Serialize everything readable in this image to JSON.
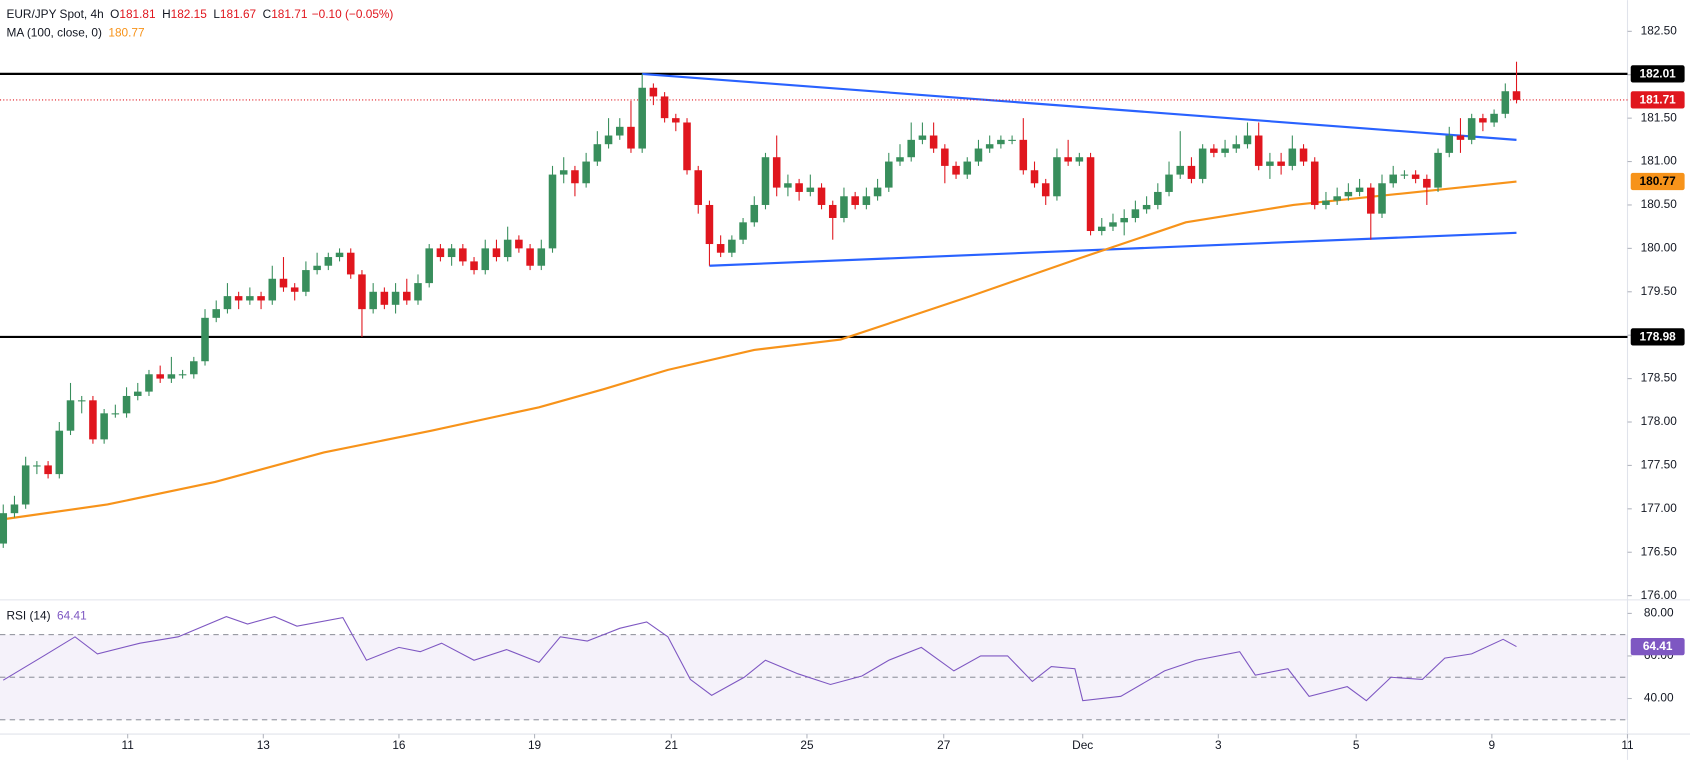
{
  "chart_data": {
    "type": "candlestick",
    "title": "EUR/JPY Spot, 4h",
    "ohlc_labels": [
      "O",
      "H",
      "L",
      "C"
    ],
    "change": "−0.10 (−0.05%)",
    "up_color": "#388e5c",
    "down_color": "#e0161e",
    "candles": [
      [
        176.6,
        177.05,
        176.55,
        176.95
      ],
      [
        176.95,
        177.15,
        176.9,
        177.05
      ],
      [
        177.05,
        177.6,
        177.0,
        177.5
      ],
      [
        177.5,
        177.55,
        177.4,
        177.5
      ],
      [
        177.5,
        177.55,
        177.35,
        177.4
      ],
      [
        177.4,
        178.0,
        177.35,
        177.9
      ],
      [
        177.9,
        178.45,
        177.85,
        178.25
      ],
      [
        178.25,
        178.3,
        178.1,
        178.25
      ],
      [
        178.25,
        178.3,
        177.75,
        177.8
      ],
      [
        177.8,
        178.15,
        177.75,
        178.1
      ],
      [
        178.1,
        178.2,
        178.05,
        178.1
      ],
      [
        178.1,
        178.4,
        178.05,
        178.3
      ],
      [
        178.3,
        178.45,
        178.25,
        178.35
      ],
      [
        178.35,
        178.6,
        178.3,
        178.55
      ],
      [
        178.55,
        178.65,
        178.45,
        178.5
      ],
      [
        178.5,
        178.75,
        178.45,
        178.55
      ],
      [
        178.55,
        178.6,
        178.5,
        178.55
      ],
      [
        178.55,
        178.75,
        178.5,
        178.7
      ],
      [
        178.7,
        179.3,
        178.65,
        179.2
      ],
      [
        179.2,
        179.4,
        179.15,
        179.3
      ],
      [
        179.3,
        179.6,
        179.25,
        179.45
      ],
      [
        179.45,
        179.5,
        179.3,
        179.4
      ],
      [
        179.4,
        179.55,
        179.35,
        179.45
      ],
      [
        179.45,
        179.5,
        179.3,
        179.4
      ],
      [
        179.4,
        179.8,
        179.35,
        179.65
      ],
      [
        179.65,
        179.9,
        179.5,
        179.55
      ],
      [
        179.55,
        179.6,
        179.4,
        179.5
      ],
      [
        179.5,
        179.85,
        179.45,
        179.75
      ],
      [
        179.75,
        179.95,
        179.7,
        179.8
      ],
      [
        179.8,
        179.95,
        179.75,
        179.9
      ],
      [
        179.9,
        180.0,
        179.85,
        179.95
      ],
      [
        179.95,
        180.0,
        179.65,
        179.7
      ],
      [
        179.7,
        179.75,
        178.98,
        179.3
      ],
      [
        179.3,
        179.6,
        179.25,
        179.5
      ],
      [
        179.5,
        179.55,
        179.3,
        179.35
      ],
      [
        179.35,
        179.6,
        179.25,
        179.5
      ],
      [
        179.5,
        179.65,
        179.35,
        179.4
      ],
      [
        179.4,
        179.7,
        179.35,
        179.6
      ],
      [
        179.6,
        180.05,
        179.55,
        180.0
      ],
      [
        180.0,
        180.05,
        179.85,
        179.9
      ],
      [
        179.9,
        180.05,
        179.8,
        180.0
      ],
      [
        180.0,
        180.05,
        179.8,
        179.85
      ],
      [
        179.85,
        179.9,
        179.7,
        179.75
      ],
      [
        179.75,
        180.1,
        179.7,
        180.0
      ],
      [
        180.0,
        180.1,
        179.85,
        179.9
      ],
      [
        179.9,
        180.25,
        179.85,
        180.1
      ],
      [
        180.1,
        180.15,
        179.95,
        180.0
      ],
      [
        180.0,
        180.05,
        179.75,
        179.8
      ],
      [
        179.8,
        180.1,
        179.75,
        180.0
      ],
      [
        180.0,
        180.95,
        179.95,
        180.85
      ],
      [
        180.85,
        181.05,
        180.75,
        180.9
      ],
      [
        180.9,
        180.95,
        180.6,
        180.75
      ],
      [
        180.75,
        181.1,
        180.7,
        181.0
      ],
      [
        181.0,
        181.35,
        180.95,
        181.2
      ],
      [
        181.2,
        181.5,
        181.15,
        181.3
      ],
      [
        181.3,
        181.5,
        181.25,
        181.4
      ],
      [
        181.4,
        181.7,
        181.1,
        181.15
      ],
      [
        181.15,
        182.01,
        181.1,
        181.85
      ],
      [
        181.85,
        181.9,
        181.65,
        181.75
      ],
      [
        181.75,
        181.8,
        181.45,
        181.5
      ],
      [
        181.5,
        181.55,
        181.35,
        181.45
      ],
      [
        181.45,
        181.5,
        180.85,
        180.9
      ],
      [
        180.9,
        180.95,
        180.4,
        180.5
      ],
      [
        180.5,
        180.55,
        179.8,
        180.05
      ],
      [
        180.05,
        180.15,
        179.9,
        179.95
      ],
      [
        179.95,
        180.15,
        179.9,
        180.1
      ],
      [
        180.1,
        180.35,
        180.05,
        180.3
      ],
      [
        180.3,
        180.6,
        180.25,
        180.5
      ],
      [
        180.5,
        181.1,
        180.45,
        181.05
      ],
      [
        181.05,
        181.3,
        180.6,
        180.7
      ],
      [
        180.7,
        180.85,
        180.6,
        180.75
      ],
      [
        180.75,
        180.8,
        180.55,
        180.65
      ],
      [
        180.65,
        180.85,
        180.6,
        180.7
      ],
      [
        180.7,
        180.75,
        180.45,
        180.5
      ],
      [
        180.5,
        180.55,
        180.1,
        180.35
      ],
      [
        180.35,
        180.7,
        180.3,
        180.6
      ],
      [
        180.6,
        180.65,
        180.45,
        180.5
      ],
      [
        180.5,
        180.7,
        180.45,
        180.6
      ],
      [
        180.6,
        180.8,
        180.55,
        180.7
      ],
      [
        180.7,
        181.1,
        180.65,
        181.0
      ],
      [
        181.0,
        181.2,
        180.95,
        181.05
      ],
      [
        181.05,
        181.45,
        181.0,
        181.25
      ],
      [
        181.25,
        181.45,
        181.2,
        181.3
      ],
      [
        181.3,
        181.45,
        181.1,
        181.15
      ],
      [
        181.15,
        181.2,
        180.75,
        180.95
      ],
      [
        180.95,
        181.0,
        180.8,
        180.85
      ],
      [
        180.85,
        181.05,
        180.8,
        181.0
      ],
      [
        181.0,
        181.25,
        180.95,
        181.15
      ],
      [
        181.15,
        181.3,
        181.1,
        181.2
      ],
      [
        181.2,
        181.3,
        181.15,
        181.25
      ],
      [
        181.25,
        181.3,
        181.2,
        181.25
      ],
      [
        181.25,
        181.5,
        180.85,
        180.9
      ],
      [
        180.9,
        181.0,
        180.7,
        180.75
      ],
      [
        180.75,
        180.8,
        180.5,
        180.6
      ],
      [
        180.6,
        181.15,
        180.55,
        181.05
      ],
      [
        181.05,
        181.25,
        180.95,
        181.0
      ],
      [
        181.0,
        181.1,
        180.95,
        181.05
      ],
      [
        181.05,
        181.1,
        180.15,
        180.2
      ],
      [
        180.2,
        180.35,
        180.15,
        180.25
      ],
      [
        180.25,
        180.4,
        180.2,
        180.3
      ],
      [
        180.3,
        180.45,
        180.15,
        180.35
      ],
      [
        180.35,
        180.55,
        180.3,
        180.45
      ],
      [
        180.45,
        180.6,
        180.4,
        180.5
      ],
      [
        180.5,
        180.75,
        180.45,
        180.65
      ],
      [
        180.65,
        181.0,
        180.6,
        180.85
      ],
      [
        180.85,
        181.35,
        180.8,
        180.95
      ],
      [
        180.95,
        181.05,
        180.75,
        180.8
      ],
      [
        180.8,
        181.2,
        180.75,
        181.15
      ],
      [
        181.15,
        181.2,
        181.05,
        181.1
      ],
      [
        181.1,
        181.25,
        181.05,
        181.15
      ],
      [
        181.15,
        181.3,
        181.1,
        181.2
      ],
      [
        181.2,
        181.45,
        181.15,
        181.3
      ],
      [
        181.3,
        181.45,
        180.9,
        180.95
      ],
      [
        180.95,
        181.1,
        180.8,
        181.0
      ],
      [
        181.0,
        181.1,
        180.85,
        180.95
      ],
      [
        180.95,
        181.3,
        180.9,
        181.15
      ],
      [
        181.15,
        181.2,
        180.95,
        181.0
      ],
      [
        181.0,
        181.05,
        180.45,
        180.5
      ],
      [
        180.5,
        180.65,
        180.45,
        180.55
      ],
      [
        180.55,
        180.7,
        180.5,
        180.6
      ],
      [
        180.6,
        180.75,
        180.55,
        180.65
      ],
      [
        180.65,
        180.8,
        180.6,
        180.7
      ],
      [
        180.7,
        180.75,
        180.1,
        180.4
      ],
      [
        180.4,
        180.85,
        180.35,
        180.75
      ],
      [
        180.75,
        180.95,
        180.7,
        180.85
      ],
      [
        180.85,
        180.9,
        180.8,
        180.85
      ],
      [
        180.85,
        180.9,
        180.75,
        180.8
      ],
      [
        180.8,
        180.85,
        180.5,
        180.7
      ],
      [
        180.7,
        181.15,
        180.65,
        181.1
      ],
      [
        181.1,
        181.4,
        181.05,
        181.3
      ],
      [
        181.3,
        181.5,
        181.1,
        181.25
      ],
      [
        181.25,
        181.55,
        181.2,
        181.5
      ],
      [
        181.5,
        181.55,
        181.35,
        181.45
      ],
      [
        181.45,
        181.6,
        181.4,
        181.55
      ],
      [
        181.55,
        181.9,
        181.5,
        181.81
      ],
      [
        181.81,
        182.15,
        181.67,
        181.71
      ]
    ],
    "xlim": [
      -0.29,
      144.9
    ],
    "xticks": [
      {
        "value": 11.1,
        "label": "11"
      },
      {
        "value": 23.2,
        "label": "13"
      },
      {
        "value": 35.3,
        "label": "16"
      },
      {
        "value": 47.4,
        "label": "19"
      },
      {
        "value": 59.6,
        "label": "21"
      },
      {
        "value": 71.7,
        "label": "25"
      },
      {
        "value": 83.9,
        "label": "27"
      },
      {
        "value": 96.3,
        "label": "Dec"
      },
      {
        "value": 108.4,
        "label": "3"
      },
      {
        "value": 120.7,
        "label": "5"
      },
      {
        "value": 132.8,
        "label": "9"
      },
      {
        "value": 144.9,
        "label": "11"
      }
    ],
    "ylim": [
      175.97,
      182.86
    ],
    "yticks": [
      {
        "value": 176,
        "label": "176.00"
      },
      {
        "value": 176.5,
        "label": "176.50"
      },
      {
        "value": 177,
        "label": "177.00"
      },
      {
        "value": 177.5,
        "label": "177.50"
      },
      {
        "value": 178,
        "label": "178.00"
      },
      {
        "value": 178.5,
        "label": "178.50"
      },
      {
        "value": 179,
        "label": "179.00"
      },
      {
        "value": 179.5,
        "label": "179.50"
      },
      {
        "value": 180,
        "label": "180.00"
      },
      {
        "value": 180.5,
        "label": "180.50"
      },
      {
        "value": 181,
        "label": "181.00"
      },
      {
        "value": 181.5,
        "label": "181.50"
      },
      {
        "value": 182,
        "label": "182.00"
      },
      {
        "value": 182.5,
        "label": "182.50"
      }
    ],
    "grid": false,
    "levels": [
      182.01,
      178.98
    ],
    "trendlines": [
      {
        "color": "#2962ff",
        "x": [
          57,
          135
        ],
        "values": [
          182.01,
          181.25
        ]
      },
      {
        "color": "#2962ff",
        "x": [
          63,
          135
        ],
        "values": [
          179.8,
          180.18
        ]
      }
    ],
    "ma": {
      "name": "MA (100, close, 0)",
      "color": "#f7931a",
      "x": [
        0,
        9.3,
        18.9,
        28.6,
        38.2,
        47.8,
        53.6,
        59.3,
        67,
        74.7,
        86.3,
        95.9,
        105.5,
        115.1,
        124.7,
        135
      ],
      "values": [
        176.88,
        177.05,
        177.31,
        177.65,
        177.9,
        178.17,
        178.38,
        178.6,
        178.83,
        178.95,
        179.45,
        179.88,
        180.3,
        180.5,
        180.63,
        180.77
      ]
    },
    "rsi": {
      "name": "RSI (14)",
      "color": "#7e57c2",
      "ylim": [
        23.8,
        85.6
      ],
      "yticks": [
        {
          "value": 40,
          "label": "40.00"
        },
        {
          "value": 60,
          "label": "60.00"
        },
        {
          "value": 80,
          "label": "80.00"
        }
      ],
      "bands": [
        70,
        50,
        30
      ],
      "x": [
        0,
        3.6,
        6.4,
        8.4,
        12.2,
        15.6,
        19.9,
        21.8,
        24.2,
        26.2,
        30.3,
        32.4,
        35.3,
        37.2,
        39.1,
        42,
        44.9,
        47.8,
        49.7,
        52.1,
        55,
        57.4,
        59.3,
        61.3,
        63.2,
        66.1,
        68,
        70.9,
        73.8,
        76.6,
        79,
        81.9,
        84.8,
        87.2,
        89.6,
        91.8,
        93.5,
        95.6,
        96.3,
        99.7,
        103.6,
        106.4,
        110.3,
        111.7,
        114.6,
        116.5,
        119.9,
        121.6,
        123.8,
        126.6,
        128.6,
        131,
        133.8,
        135
      ],
      "values": [
        48.6,
        60,
        69,
        61,
        66,
        69,
        78.5,
        75,
        78.5,
        74,
        78,
        58,
        64,
        62,
        66,
        58,
        63,
        57,
        69,
        67,
        73,
        76,
        69,
        49,
        41.5,
        50,
        58,
        51.6,
        46.6,
        50.6,
        58,
        64,
        53,
        60,
        60,
        48,
        55,
        54,
        39,
        41,
        53,
        58,
        62,
        51,
        54,
        41,
        45.6,
        39,
        50,
        49,
        59,
        61,
        67.8,
        64.41
      ]
    }
  }
}
